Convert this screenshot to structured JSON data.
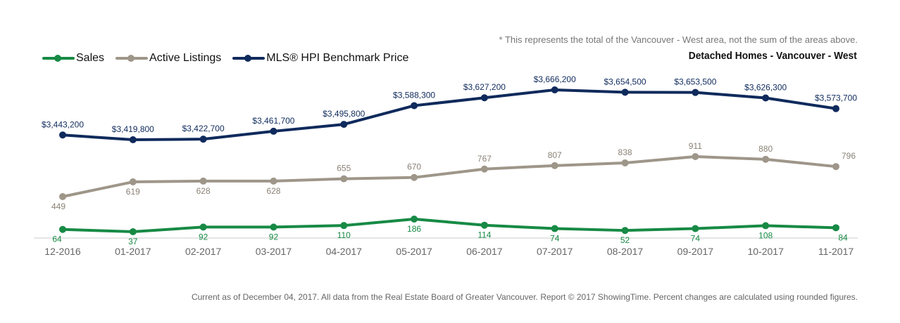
{
  "note": "* This represents the total of the Vancouver - West area, not the sum of the areas above.",
  "footer": "Current as of December 04, 2017. All data from the Real Estate Board of Greater Vancouver. Report © 2017 ShowingTime. Percent changes are calculated using rounded figures.",
  "colors": {
    "sales": "#178a45",
    "active": "#9e9689",
    "hpi": "#0f2a5c",
    "axis_text": "#666666"
  },
  "chart_data": {
    "type": "line",
    "title": "Detached Homes - Vancouver - West",
    "categories": [
      "12-2016",
      "01-2017",
      "02-2017",
      "03-2017",
      "04-2017",
      "05-2017",
      "06-2017",
      "07-2017",
      "08-2017",
      "09-2017",
      "10-2017",
      "11-2017"
    ],
    "legend_position": "top-left",
    "grid": false,
    "series": [
      {
        "name": "Sales",
        "color": "#178a45",
        "values": [
          64,
          37,
          92,
          92,
          110,
          186,
          114,
          74,
          52,
          74,
          108,
          84
        ],
        "labels": [
          "64",
          "37",
          "92",
          "92",
          "110",
          "186",
          "114",
          "74",
          "52",
          "74",
          "108",
          "84"
        ]
      },
      {
        "name": "Active Listings",
        "color": "#9e9689",
        "values": [
          449,
          619,
          628,
          628,
          655,
          670,
          767,
          807,
          838,
          911,
          880,
          796
        ],
        "labels": [
          "449",
          "619",
          "628",
          "628",
          "655",
          "670",
          "767",
          "807",
          "838",
          "911",
          "880",
          "796"
        ]
      },
      {
        "name": "MLS® HPI Benchmark Price",
        "color": "#0f2a5c",
        "values": [
          3443200,
          3419800,
          3422700,
          3461700,
          3495800,
          3588300,
          3627200,
          3666200,
          3654500,
          3653500,
          3626300,
          3573700
        ],
        "labels": [
          "$3,443,200",
          "$3,419,800",
          "$3,422,700",
          "$3,461,700",
          "$3,495,800",
          "$3,588,300",
          "$3,627,200",
          "$3,666,200",
          "$3,654,500",
          "$3,653,500",
          "$3,626,300",
          "$3,573,700"
        ]
      }
    ]
  }
}
